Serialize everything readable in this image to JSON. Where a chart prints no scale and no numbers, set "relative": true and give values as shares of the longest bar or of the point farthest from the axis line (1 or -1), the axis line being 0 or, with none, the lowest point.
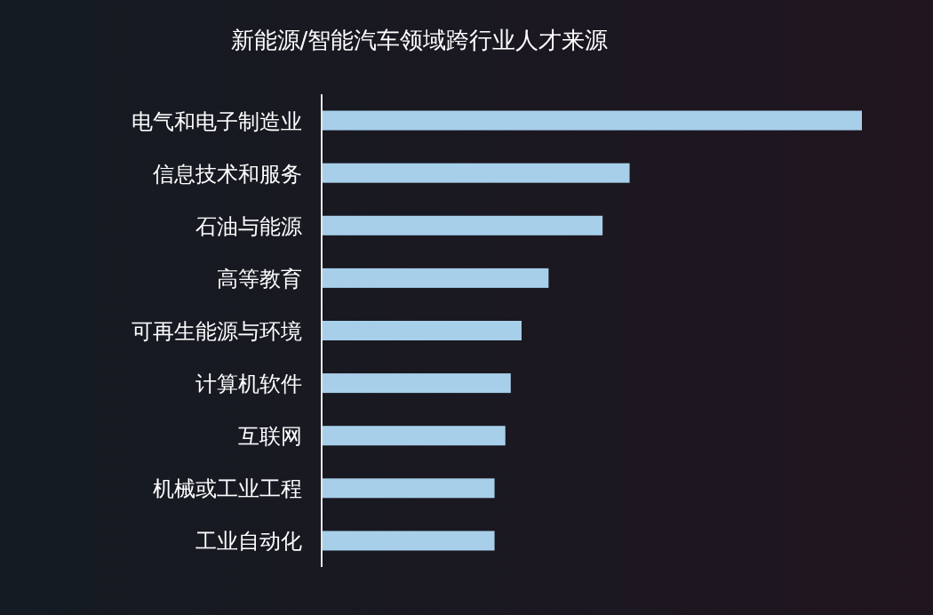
{
  "chart_data": {
    "type": "bar",
    "orientation": "horizontal",
    "relative": true,
    "title": "新能源/智能汽车领域跨行业人才来源",
    "categories": [
      "电气和电子制造业",
      "信息技术和服务",
      "石油与能源",
      "高等教育",
      "可再生能源与环境",
      "计算机软件",
      "互联网",
      "机械或工业工程",
      "工业自动化"
    ],
    "values": [
      1,
      0.57,
      0.52,
      0.42,
      0.37,
      0.35,
      0.34,
      0.32,
      0.32
    ],
    "color": "#a7cfea"
  }
}
